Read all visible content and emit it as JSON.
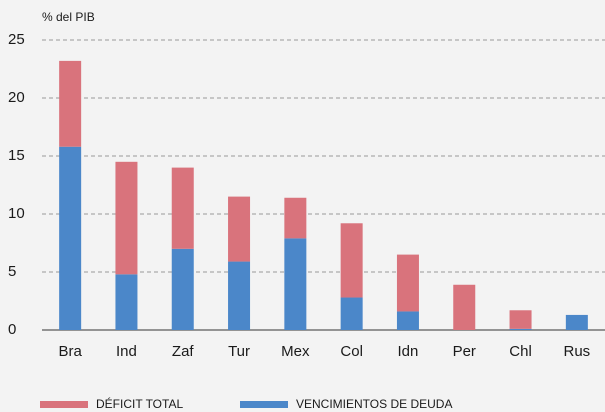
{
  "chart_data": {
    "type": "stacked_bar",
    "y_axis_label": "% del PIB",
    "categories": [
      "Bra",
      "Ind",
      "Zaf",
      "Tur",
      "Mex",
      "Col",
      "Idn",
      "Per",
      "Chl",
      "Rus"
    ],
    "series": [
      {
        "name": "VENCIMIENTOS DE DEUDA",
        "color": "#4b87c9",
        "values": [
          15.8,
          4.8,
          7.0,
          5.9,
          7.9,
          2.8,
          1.6,
          0,
          0.1,
          1.3
        ]
      },
      {
        "name": "DÉFICIT TOTAL",
        "color": "#d9737c",
        "values": [
          7.4,
          9.7,
          7.0,
          5.6,
          3.5,
          6.4,
          4.9,
          3.9,
          1.6,
          0
        ]
      }
    ],
    "ylim": [
      0,
      25
    ],
    "yticks": [
      0,
      5,
      10,
      15,
      20,
      25
    ],
    "grid": true
  }
}
